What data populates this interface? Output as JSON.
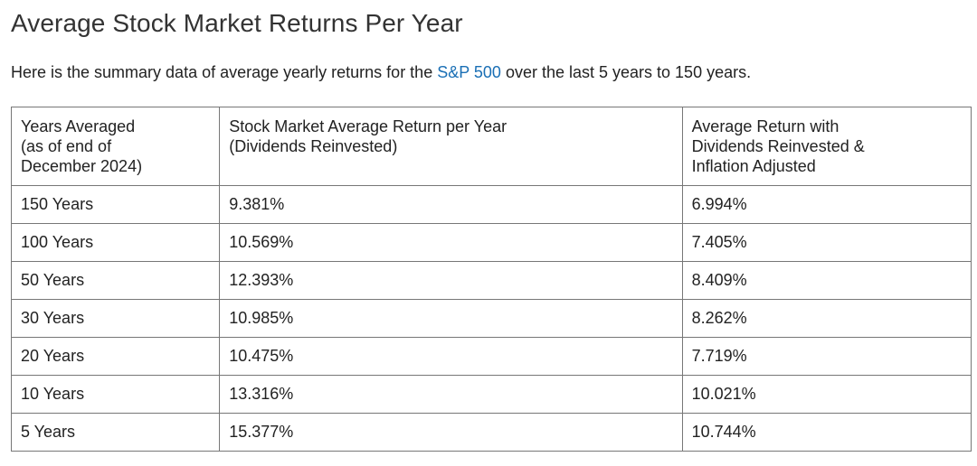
{
  "page": {
    "title": "Average Stock Market Returns Per Year",
    "intro_before": "Here is the summary data of average yearly returns for the ",
    "intro_link": "S&P 500",
    "intro_after": " over the last 5 years to 150 years."
  },
  "colors": {
    "link": "#1a6fb5",
    "border": "#777777",
    "text": "#222222"
  },
  "table": {
    "headers": [
      [
        "Years Averaged",
        "(as of end of",
        "December 2024)"
      ],
      [
        "Stock Market Average Return per Year",
        "(Dividends Reinvested)"
      ],
      [
        "Average Return with",
        "Dividends Reinvested &",
        "Inflation Adjusted"
      ]
    ],
    "rows": [
      [
        "150 Years",
        "9.381%",
        "6.994%"
      ],
      [
        "100 Years",
        "10.569%",
        "7.405%"
      ],
      [
        "50 Years",
        "12.393%",
        "8.409%"
      ],
      [
        "30 Years",
        "10.985%",
        "8.262%"
      ],
      [
        "20 Years",
        "10.475%",
        "7.719%"
      ],
      [
        "10 Years",
        "13.316%",
        "10.021%"
      ],
      [
        "5 Years",
        "15.377%",
        "10.744%"
      ]
    ]
  }
}
